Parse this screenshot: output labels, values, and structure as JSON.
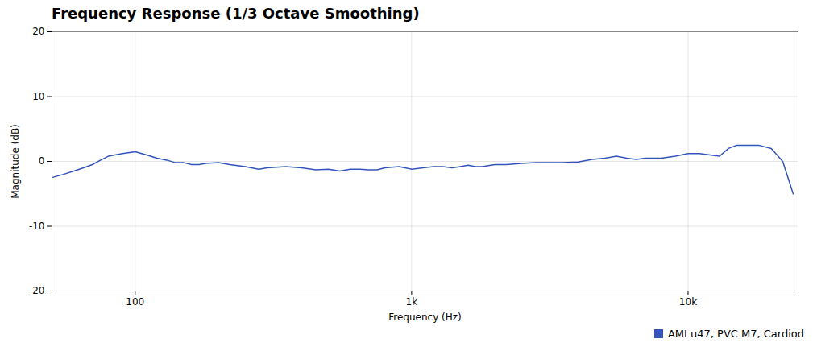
{
  "chart_data": {
    "type": "line",
    "title": "Frequency Response (1/3 Octave Smoothing)",
    "xlabel": "Frequency (Hz)",
    "ylabel": "Magnitude (dB)",
    "x": [
      50,
      55,
      60,
      65,
      70,
      75,
      80,
      90,
      100,
      110,
      120,
      130,
      140,
      150,
      160,
      170,
      180,
      200,
      220,
      250,
      280,
      300,
      350,
      400,
      450,
      500,
      550,
      600,
      650,
      700,
      750,
      800,
      900,
      1000,
      1100,
      1200,
      1300,
      1400,
      1500,
      1600,
      1700,
      1800,
      2000,
      2200,
      2500,
      2800,
      3000,
      3500,
      4000,
      4500,
      5000,
      5500,
      6000,
      6500,
      7000,
      7500,
      8000,
      9000,
      10000,
      11000,
      12000,
      13000,
      14000,
      15000,
      16000,
      17000,
      18000,
      20000,
      22000,
      24000
    ],
    "series": [
      {
        "name": "AMI u47, PVC M7, Cardiod",
        "color": "#3355bb",
        "values": [
          -2.5,
          -2.0,
          -1.5,
          -1.0,
          -0.5,
          0.2,
          0.8,
          1.2,
          1.5,
          1.0,
          0.5,
          0.2,
          -0.2,
          -0.2,
          -0.5,
          -0.5,
          -0.3,
          -0.2,
          -0.5,
          -0.8,
          -1.2,
          -1.0,
          -0.8,
          -1.0,
          -1.3,
          -1.2,
          -1.5,
          -1.2,
          -1.2,
          -1.3,
          -1.3,
          -1.0,
          -0.8,
          -1.2,
          -1.0,
          -0.8,
          -0.8,
          -1.0,
          -0.8,
          -0.6,
          -0.8,
          -0.8,
          -0.5,
          -0.5,
          -0.3,
          -0.2,
          -0.2,
          -0.2,
          -0.1,
          0.3,
          0.5,
          0.8,
          0.5,
          0.3,
          0.5,
          0.5,
          0.5,
          0.8,
          1.2,
          1.2,
          1.0,
          0.8,
          2.0,
          2.5,
          2.5,
          2.5,
          2.5,
          2.0,
          0.0,
          -5.0
        ]
      }
    ],
    "xlim": [
      50,
      25000
    ],
    "ylim": [
      -20,
      20
    ],
    "xticks": [
      100,
      {
        "value": 1000,
        "label": "1k"
      },
      {
        "value": 10000,
        "label": "10k"
      }
    ],
    "yticks": [
      -20,
      -10,
      0,
      10,
      20
    ],
    "log": "x",
    "grid": true,
    "legend": "lower right"
  }
}
